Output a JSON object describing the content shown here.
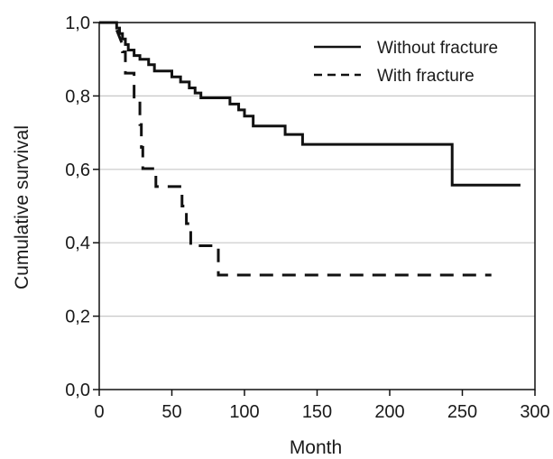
{
  "chart_data": {
    "type": "line",
    "title": "",
    "xlabel": "Month",
    "ylabel": "Cumulative survival",
    "xlim": [
      0,
      300
    ],
    "ylim": [
      0,
      1
    ],
    "xticks": [
      0,
      50,
      100,
      150,
      200,
      250,
      300
    ],
    "xtick_labels": [
      "0",
      "50",
      "100",
      "150",
      "200",
      "250",
      "300"
    ],
    "yticks": [
      0,
      0.2,
      0.4,
      0.6,
      0.8,
      1.0
    ],
    "ytick_labels": [
      "0,0",
      "0,2",
      "0,4",
      "0,6",
      "0,8",
      "1,0"
    ],
    "grid": "horizontal",
    "legend": "top-right",
    "series": [
      {
        "name": "Without fracture",
        "style": "solid",
        "color": "#111111",
        "points": [
          [
            0,
            1.0
          ],
          [
            12,
            1.0
          ],
          [
            12,
            0.985
          ],
          [
            14,
            0.985
          ],
          [
            14,
            0.97
          ],
          [
            16,
            0.97
          ],
          [
            16,
            0.955
          ],
          [
            18,
            0.955
          ],
          [
            18,
            0.94
          ],
          [
            20,
            0.94
          ],
          [
            20,
            0.925
          ],
          [
            24,
            0.925
          ],
          [
            24,
            0.91
          ],
          [
            28,
            0.91
          ],
          [
            28,
            0.9
          ],
          [
            34,
            0.9
          ],
          [
            34,
            0.885
          ],
          [
            38,
            0.885
          ],
          [
            38,
            0.868
          ],
          [
            50,
            0.868
          ],
          [
            50,
            0.852
          ],
          [
            56,
            0.852
          ],
          [
            56,
            0.838
          ],
          [
            62,
            0.838
          ],
          [
            62,
            0.822
          ],
          [
            66,
            0.822
          ],
          [
            66,
            0.808
          ],
          [
            70,
            0.808
          ],
          [
            70,
            0.795
          ],
          [
            90,
            0.795
          ],
          [
            90,
            0.778
          ],
          [
            96,
            0.778
          ],
          [
            96,
            0.762
          ],
          [
            100,
            0.762
          ],
          [
            100,
            0.745
          ],
          [
            106,
            0.745
          ],
          [
            106,
            0.718
          ],
          [
            128,
            0.718
          ],
          [
            128,
            0.695
          ],
          [
            140,
            0.695
          ],
          [
            140,
            0.668
          ],
          [
            243,
            0.668
          ],
          [
            243,
            0.557
          ],
          [
            290,
            0.557
          ]
        ]
      },
      {
        "name": "With fracture",
        "style": "dashed",
        "color": "#111111",
        "points": [
          [
            0,
            1.0
          ],
          [
            10,
            1.0
          ],
          [
            16,
            0.94
          ],
          [
            16,
            0.92
          ],
          [
            18,
            0.92
          ],
          [
            18,
            0.862
          ],
          [
            24,
            0.862
          ],
          [
            24,
            0.785
          ],
          [
            28,
            0.785
          ],
          [
            28,
            0.722
          ],
          [
            29,
            0.722
          ],
          [
            29,
            0.66
          ],
          [
            30,
            0.66
          ],
          [
            30,
            0.602
          ],
          [
            39,
            0.602
          ],
          [
            39,
            0.553
          ],
          [
            57,
            0.553
          ],
          [
            57,
            0.5
          ],
          [
            60,
            0.5
          ],
          [
            60,
            0.452
          ],
          [
            63,
            0.452
          ],
          [
            63,
            0.392
          ],
          [
            82,
            0.392
          ],
          [
            82,
            0.312
          ],
          [
            270,
            0.312
          ]
        ]
      }
    ]
  }
}
